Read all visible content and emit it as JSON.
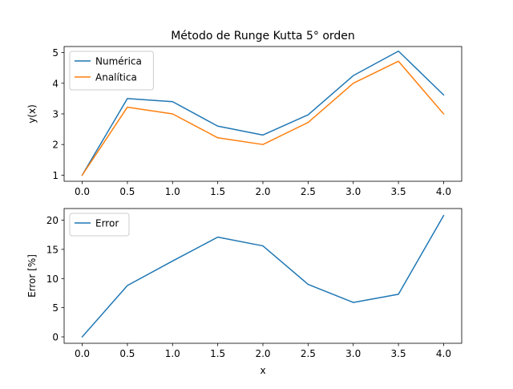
{
  "chart_data": [
    {
      "type": "line",
      "title": "Método de Runge Kutta 5° orden",
      "xlabel": "",
      "ylabel": "y(x)",
      "x": [
        0.0,
        0.5,
        1.0,
        1.5,
        2.0,
        2.5,
        3.0,
        3.5,
        4.0
      ],
      "xticks": [
        "0.0",
        "0.5",
        "1.0",
        "1.5",
        "2.0",
        "2.5",
        "3.0",
        "3.5",
        "4.0"
      ],
      "yticks": [
        "1",
        "2",
        "3",
        "4",
        "5"
      ],
      "xlim": [
        -0.2,
        4.2
      ],
      "ylim": [
        0.8,
        5.2
      ],
      "grid": false,
      "legend_position": "upper-left",
      "series": [
        {
          "name": "Numérica",
          "color": "#1f77b4",
          "values": [
            1.0,
            3.5,
            3.4,
            2.6,
            2.31,
            2.97,
            4.25,
            5.05,
            3.62
          ]
        },
        {
          "name": "Analítica",
          "color": "#ff7f0e",
          "values": [
            1.0,
            3.22,
            3.0,
            2.22,
            2.0,
            2.72,
            4.0,
            4.72,
            3.0
          ]
        }
      ]
    },
    {
      "type": "line",
      "title": "",
      "xlabel": "x",
      "ylabel": "Error [%]",
      "x": [
        0.0,
        0.5,
        1.0,
        1.5,
        2.0,
        2.5,
        3.0,
        3.5,
        4.0
      ],
      "xticks": [
        "0.0",
        "0.5",
        "1.0",
        "1.5",
        "2.0",
        "2.5",
        "3.0",
        "3.5",
        "4.0"
      ],
      "yticks": [
        "0",
        "5",
        "10",
        "15",
        "20"
      ],
      "xlim": [
        -0.2,
        4.2
      ],
      "ylim": [
        -1.1,
        22.0
      ],
      "grid": false,
      "legend_position": "upper-left",
      "series": [
        {
          "name": "Error",
          "color": "#1f77b4",
          "values": [
            0.0,
            8.8,
            13.0,
            17.1,
            15.6,
            9.0,
            5.9,
            7.3,
            20.8
          ]
        }
      ]
    }
  ]
}
